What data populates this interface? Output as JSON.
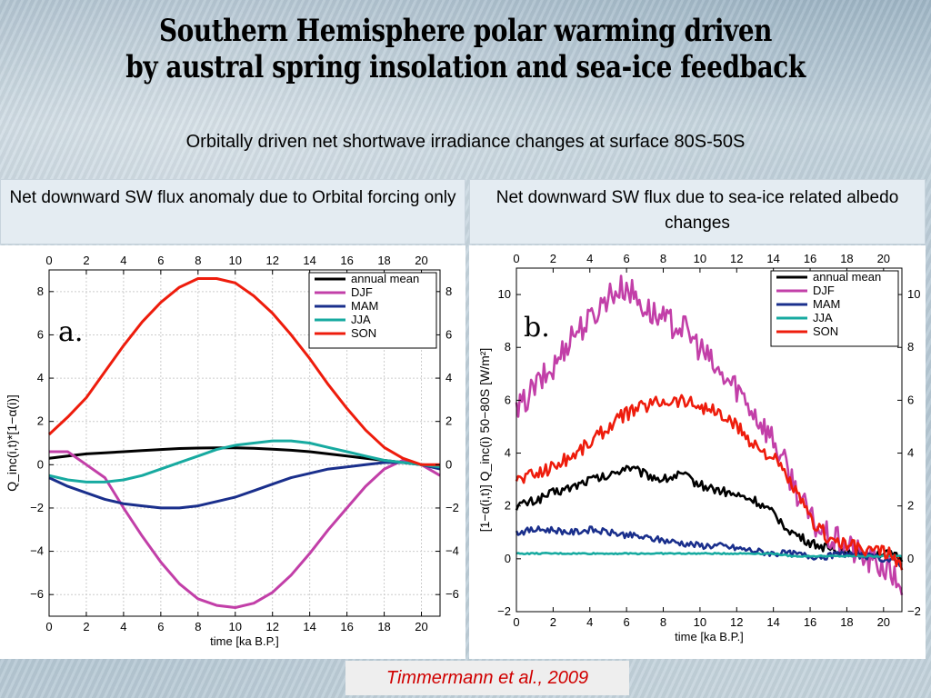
{
  "slide": {
    "title_line1": "Southern Hemisphere polar warming driven",
    "title_line2": "by austral spring insolation and sea-ice feedback",
    "subtitle": "Orbitally driven net shortwave irradiance changes  at surface 80S-50S",
    "citation": "Timmermann et al., 2009"
  },
  "panels": {
    "a": {
      "header": "Net downward SW flux anomaly due to Orbital forcing only"
    },
    "b": {
      "header": "Net downward SW flux due to sea-ice related albedo changes"
    }
  },
  "colors": {
    "annual mean": "#000000",
    "DJF": "#c23fa8",
    "MAM": "#1a2f8c",
    "JJA": "#17aaa0",
    "SON": "#ee1c0c"
  },
  "chart_data": [
    {
      "type": "line",
      "panel_label": "a.",
      "xlabel": "time [ka B.P.]",
      "ylabel": "Q_inc(i,t)*[1−α(i)]",
      "xlim": [
        0,
        21
      ],
      "ylim": [
        -7,
        9
      ],
      "xticks": [
        0,
        2,
        4,
        6,
        8,
        10,
        12,
        14,
        16,
        18,
        20
      ],
      "yticks": [
        -6,
        -4,
        -2,
        0,
        2,
        4,
        6,
        8
      ],
      "ytick_labels": [
        "−6",
        "−4",
        "−2",
        "0",
        "2",
        "4",
        "6",
        "8"
      ],
      "grid": true,
      "legend_position": "top-right",
      "x": [
        0,
        1,
        2,
        3,
        4,
        5,
        6,
        7,
        8,
        9,
        10,
        11,
        12,
        13,
        14,
        15,
        16,
        17,
        18,
        19,
        20,
        21
      ],
      "series": [
        {
          "name": "annual mean",
          "values": [
            0.3,
            0.4,
            0.5,
            0.55,
            0.6,
            0.65,
            0.7,
            0.75,
            0.77,
            0.78,
            0.78,
            0.76,
            0.72,
            0.67,
            0.6,
            0.5,
            0.4,
            0.3,
            0.2,
            0.1,
            0.0,
            -0.05
          ]
        },
        {
          "name": "DJF",
          "values": [
            0.6,
            0.6,
            0.0,
            -0.6,
            -2.0,
            -3.3,
            -4.5,
            -5.5,
            -6.2,
            -6.5,
            -6.6,
            -6.4,
            -5.9,
            -5.1,
            -4.1,
            -3.0,
            -2.0,
            -1.0,
            -0.2,
            0.2,
            0.0,
            -0.5
          ]
        },
        {
          "name": "MAM",
          "values": [
            -0.6,
            -1.0,
            -1.3,
            -1.6,
            -1.8,
            -1.9,
            -2.0,
            -2.0,
            -1.9,
            -1.7,
            -1.5,
            -1.2,
            -0.9,
            -0.6,
            -0.4,
            -0.2,
            -0.1,
            0.0,
            0.1,
            0.1,
            0.0,
            -0.2
          ]
        },
        {
          "name": "JJA",
          "values": [
            -0.5,
            -0.7,
            -0.8,
            -0.8,
            -0.7,
            -0.5,
            -0.2,
            0.1,
            0.4,
            0.7,
            0.9,
            1.0,
            1.1,
            1.1,
            1.0,
            0.8,
            0.6,
            0.4,
            0.2,
            0.1,
            0.0,
            -0.1
          ]
        },
        {
          "name": "SON",
          "values": [
            1.4,
            2.2,
            3.1,
            4.3,
            5.5,
            6.6,
            7.5,
            8.2,
            8.6,
            8.6,
            8.4,
            7.8,
            7.0,
            6.0,
            4.9,
            3.7,
            2.6,
            1.6,
            0.8,
            0.3,
            0.0,
            0.0
          ]
        }
      ]
    },
    {
      "type": "line",
      "panel_label": "b.",
      "xlabel": "time [ka B.P.]",
      "ylabel": "[1−α(i,t)] Q_inc(i)  50−80S [W/m²]",
      "xlim": [
        0,
        21
      ],
      "ylim": [
        -2,
        11
      ],
      "xticks": [
        0,
        2,
        4,
        6,
        8,
        10,
        12,
        14,
        16,
        18,
        20
      ],
      "yticks": [
        -2,
        0,
        2,
        4,
        6,
        8,
        10
      ],
      "ytick_labels": [
        "−2",
        "0",
        "2",
        "4",
        "6",
        "8",
        "10"
      ],
      "grid": false,
      "legend_position": "top-right",
      "x": [
        0,
        1,
        2,
        3,
        4,
        5,
        6,
        7,
        8,
        9,
        10,
        11,
        12,
        13,
        14,
        15,
        16,
        17,
        18,
        19,
        20,
        21
      ],
      "series": [
        {
          "name": "annual mean",
          "values": [
            2.0,
            2.2,
            2.5,
            2.7,
            3.0,
            3.1,
            3.5,
            3.2,
            3.0,
            3.2,
            2.8,
            2.6,
            2.4,
            2.2,
            1.7,
            1.0,
            0.6,
            0.4,
            0.3,
            0.2,
            0.2,
            0.0
          ]
        },
        {
          "name": "DJF",
          "values": [
            5.5,
            6.5,
            7.2,
            8.5,
            9.0,
            10.0,
            10.3,
            9.5,
            9.0,
            8.8,
            8.0,
            7.0,
            6.5,
            5.5,
            4.5,
            3.0,
            1.5,
            0.8,
            0.5,
            0.0,
            -0.3,
            -1.0
          ]
        },
        {
          "name": "MAM",
          "values": [
            1.0,
            1.1,
            1.1,
            1.0,
            1.1,
            1.0,
            0.9,
            0.8,
            0.7,
            0.6,
            0.5,
            0.5,
            0.4,
            0.3,
            0.2,
            0.2,
            0.1,
            0.1,
            0.2,
            0.1,
            0.0,
            -0.2
          ]
        },
        {
          "name": "JJA",
          "values": [
            0.2,
            0.2,
            0.2,
            0.2,
            0.2,
            0.2,
            0.2,
            0.2,
            0.2,
            0.2,
            0.2,
            0.2,
            0.2,
            0.2,
            0.2,
            0.1,
            0.1,
            0.1,
            0.1,
            0.1,
            0.1,
            0.1
          ]
        },
        {
          "name": "SON",
          "values": [
            3.0,
            3.2,
            3.5,
            3.9,
            4.4,
            5.0,
            5.5,
            5.8,
            6.0,
            6.0,
            5.8,
            5.5,
            5.0,
            4.3,
            3.8,
            2.8,
            1.5,
            0.8,
            0.5,
            0.3,
            0.3,
            -0.2
          ]
        }
      ]
    }
  ]
}
